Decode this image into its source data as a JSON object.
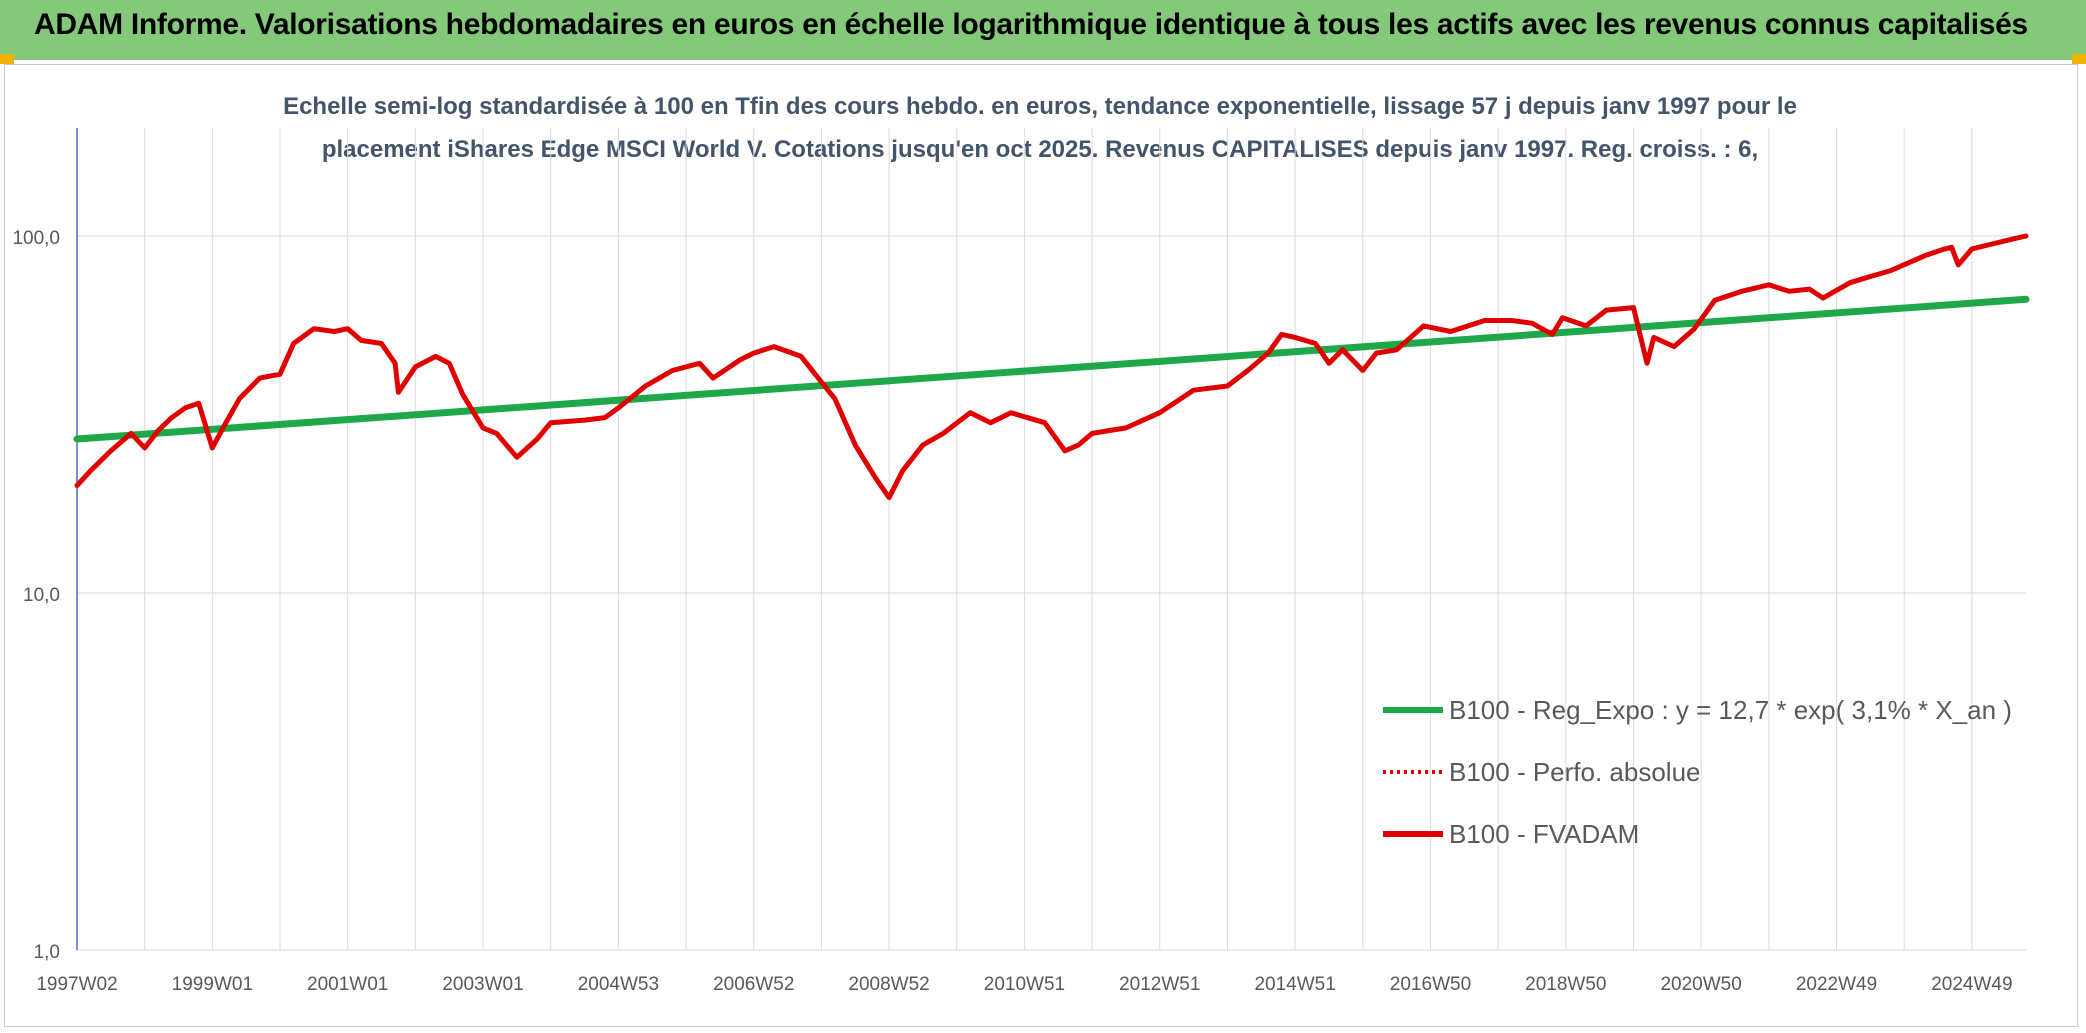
{
  "header": {
    "title": "ADAM Informe. Valorisations hebdomadaires en euros en échelle logarithmique identique à tous les actifs avec les revenus connus capitalisés",
    "background": "#84c97a"
  },
  "chart_data": {
    "type": "line",
    "title_line1": "Echelle semi-log standardisée à 100 en Tfin des cours hebdo. en euros, tendance exponentielle, lissage 57 j depuis janv 1997 pour le",
    "title_line2": "placement iShares Edge MSCI World V. Cotations jusqu'en oct 2025. Revenus CAPITALISES depuis janv 1997. Reg. croiss. : 6,",
    "y_scale": "log",
    "ylim": [
      1,
      100
    ],
    "xlim": [
      1997.0,
      2025.8
    ],
    "y_ticks": [
      {
        "value": 1,
        "label": "1,0"
      },
      {
        "value": 10,
        "label": "10,0"
      },
      {
        "value": 100,
        "label": "100,0"
      }
    ],
    "x_ticks": [
      {
        "value": 1997.0,
        "label": "1997W02"
      },
      {
        "value": 1999.0,
        "label": "1999W01"
      },
      {
        "value": 2001.0,
        "label": "2001W01"
      },
      {
        "value": 2003.0,
        "label": "2003W01"
      },
      {
        "value": 2005.0,
        "label": "2004W53"
      },
      {
        "value": 2007.0,
        "label": "2006W52"
      },
      {
        "value": 2009.0,
        "label": "2008W52"
      },
      {
        "value": 2011.0,
        "label": "2010W51"
      },
      {
        "value": 2013.0,
        "label": "2012W51"
      },
      {
        "value": 2015.0,
        "label": "2014W51"
      },
      {
        "value": 2017.0,
        "label": "2016W50"
      },
      {
        "value": 2019.0,
        "label": "2018W50"
      },
      {
        "value": 2021.0,
        "label": "2020W50"
      },
      {
        "value": 2023.0,
        "label": "2022W49"
      },
      {
        "value": 2025.0,
        "label": "2024W49"
      }
    ],
    "grid": true,
    "legend_position": "lower-right",
    "series": [
      {
        "name": "B100 - Reg_Expo : y = 12,7 * exp( 3,1% *  X_an )",
        "color": "#1fa84a",
        "style": "solid",
        "x": [
          1997.0,
          2025.8
        ],
        "y": [
          27.0,
          66.5
        ]
      },
      {
        "name": "B100 - Perfo. absolue",
        "color": "#e00000",
        "style": "dotted",
        "x": [],
        "y": []
      },
      {
        "name": "B100 - FVADAM",
        "color": "#e00000",
        "style": "solid",
        "x": [
          1997.0,
          1997.2,
          1997.5,
          1997.8,
          1998.0,
          1998.2,
          1998.4,
          1998.6,
          1998.8,
          1999.0,
          1999.2,
          1999.4,
          1999.7,
          2000.0,
          2000.2,
          2000.5,
          2000.8,
          2001.0,
          2001.2,
          2001.5,
          2001.7,
          2001.75,
          2002.0,
          2002.3,
          2002.5,
          2002.7,
          2003.0,
          2003.2,
          2003.5,
          2003.8,
          2004.0,
          2004.5,
          2004.8,
          2005.0,
          2005.4,
          2005.8,
          2006.2,
          2006.4,
          2006.8,
          2007.0,
          2007.3,
          2007.7,
          2008.0,
          2008.2,
          2008.5,
          2008.8,
          2009.0,
          2009.2,
          2009.5,
          2009.8,
          2010.2,
          2010.5,
          2010.8,
          2011.3,
          2011.6,
          2011.8,
          2012.0,
          2012.5,
          2013.0,
          2013.5,
          2014.0,
          2014.3,
          2014.6,
          2014.8,
          2015.0,
          2015.3,
          2015.5,
          2015.7,
          2016.0,
          2016.2,
          2016.5,
          2016.9,
          2017.3,
          2017.8,
          2018.2,
          2018.5,
          2018.8,
          2018.95,
          2019.3,
          2019.6,
          2020.0,
          2020.2,
          2020.3,
          2020.6,
          2020.9,
          2021.2,
          2021.6,
          2022.0,
          2022.3,
          2022.6,
          2022.8,
          2023.2,
          2023.5,
          2023.8,
          2024.3,
          2024.6,
          2024.7,
          2024.8,
          2025.0,
          2025.3,
          2025.6,
          2025.8
        ],
        "y": [
          20.0,
          22.0,
          25.0,
          28.0,
          25.5,
          28.5,
          31.0,
          33.0,
          34.0,
          25.5,
          30.0,
          35.0,
          40.0,
          41.0,
          50.0,
          55.0,
          54.0,
          55.0,
          51.0,
          50.0,
          44.0,
          36.5,
          43.0,
          46.0,
          44.0,
          36.0,
          29.0,
          28.0,
          24.0,
          27.0,
          30.0,
          30.5,
          31.0,
          33.0,
          38.0,
          42.0,
          44.0,
          40.0,
          45.0,
          47.0,
          49.0,
          46.0,
          39.0,
          35.0,
          26.0,
          21.0,
          18.5,
          22.0,
          26.0,
          28.0,
          32.0,
          30.0,
          32.0,
          30.0,
          25.0,
          26.0,
          28.0,
          29.0,
          32.0,
          37.0,
          38.0,
          42.0,
          47.0,
          53.0,
          52.0,
          50.0,
          44.0,
          48.0,
          42.0,
          47.0,
          48.0,
          56.0,
          54.0,
          58.0,
          58.0,
          57.0,
          53.0,
          59.0,
          56.0,
          62.0,
          63.0,
          44.0,
          52.0,
          49.0,
          55.0,
          66.0,
          70.0,
          73.0,
          70.0,
          71.0,
          67.0,
          74.0,
          77.0,
          80.0,
          88.0,
          92.0,
          93.0,
          83.0,
          92.0,
          95.0,
          98.0,
          100.0
        ]
      }
    ]
  }
}
